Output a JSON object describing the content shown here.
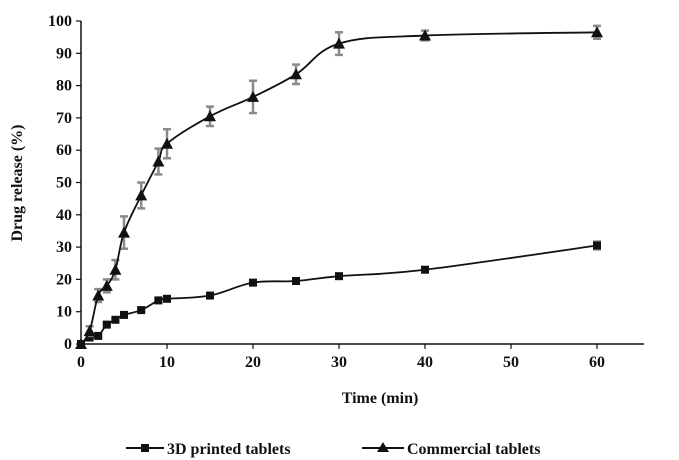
{
  "chart_data": {
    "type": "line",
    "title": "",
    "xlabel": "Time (min)",
    "ylabel": "Drug release (%)",
    "xlim": [
      0,
      65
    ],
    "ylim": [
      0,
      100
    ],
    "xticks": [
      0,
      10,
      20,
      30,
      40,
      50,
      60
    ],
    "yticks": [
      0,
      10,
      20,
      30,
      40,
      50,
      60,
      70,
      80,
      90,
      100
    ],
    "grid": false,
    "legend_position": "bottom",
    "series": [
      {
        "name": "3D printed tablets",
        "marker": "square",
        "x": [
          0,
          1,
          2,
          3,
          4,
          5,
          7,
          9,
          10,
          15,
          20,
          25,
          30,
          40,
          60
        ],
        "y": [
          0,
          2,
          2.5,
          6,
          7.5,
          9,
          10.5,
          13.5,
          14,
          15,
          19,
          19.5,
          21,
          23,
          30.5
        ],
        "err": [
          0,
          0.5,
          0.5,
          0.5,
          0.5,
          0.5,
          0.5,
          0.5,
          0.5,
          0.5,
          0.5,
          0.5,
          0.5,
          0.5,
          1.2
        ]
      },
      {
        "name": "Commercial tablets",
        "marker": "triangle",
        "x": [
          0,
          1,
          2,
          3,
          4,
          5,
          7,
          9,
          10,
          15,
          20,
          25,
          30,
          40,
          60
        ],
        "y": [
          0,
          4,
          15,
          18,
          23,
          34.5,
          46,
          56.5,
          62,
          70.5,
          76.5,
          83.5,
          93,
          95.5,
          96.5
        ],
        "err": [
          0,
          1.5,
          2,
          2,
          3,
          5,
          4,
          4,
          4.5,
          3,
          5,
          3,
          3.5,
          1.5,
          2
        ]
      }
    ]
  },
  "legend": {
    "series0": "3D printed tablets",
    "series1": "Commercial tablets"
  },
  "colors": {
    "line": "#111111",
    "error_bar": "#8a8a8a"
  }
}
